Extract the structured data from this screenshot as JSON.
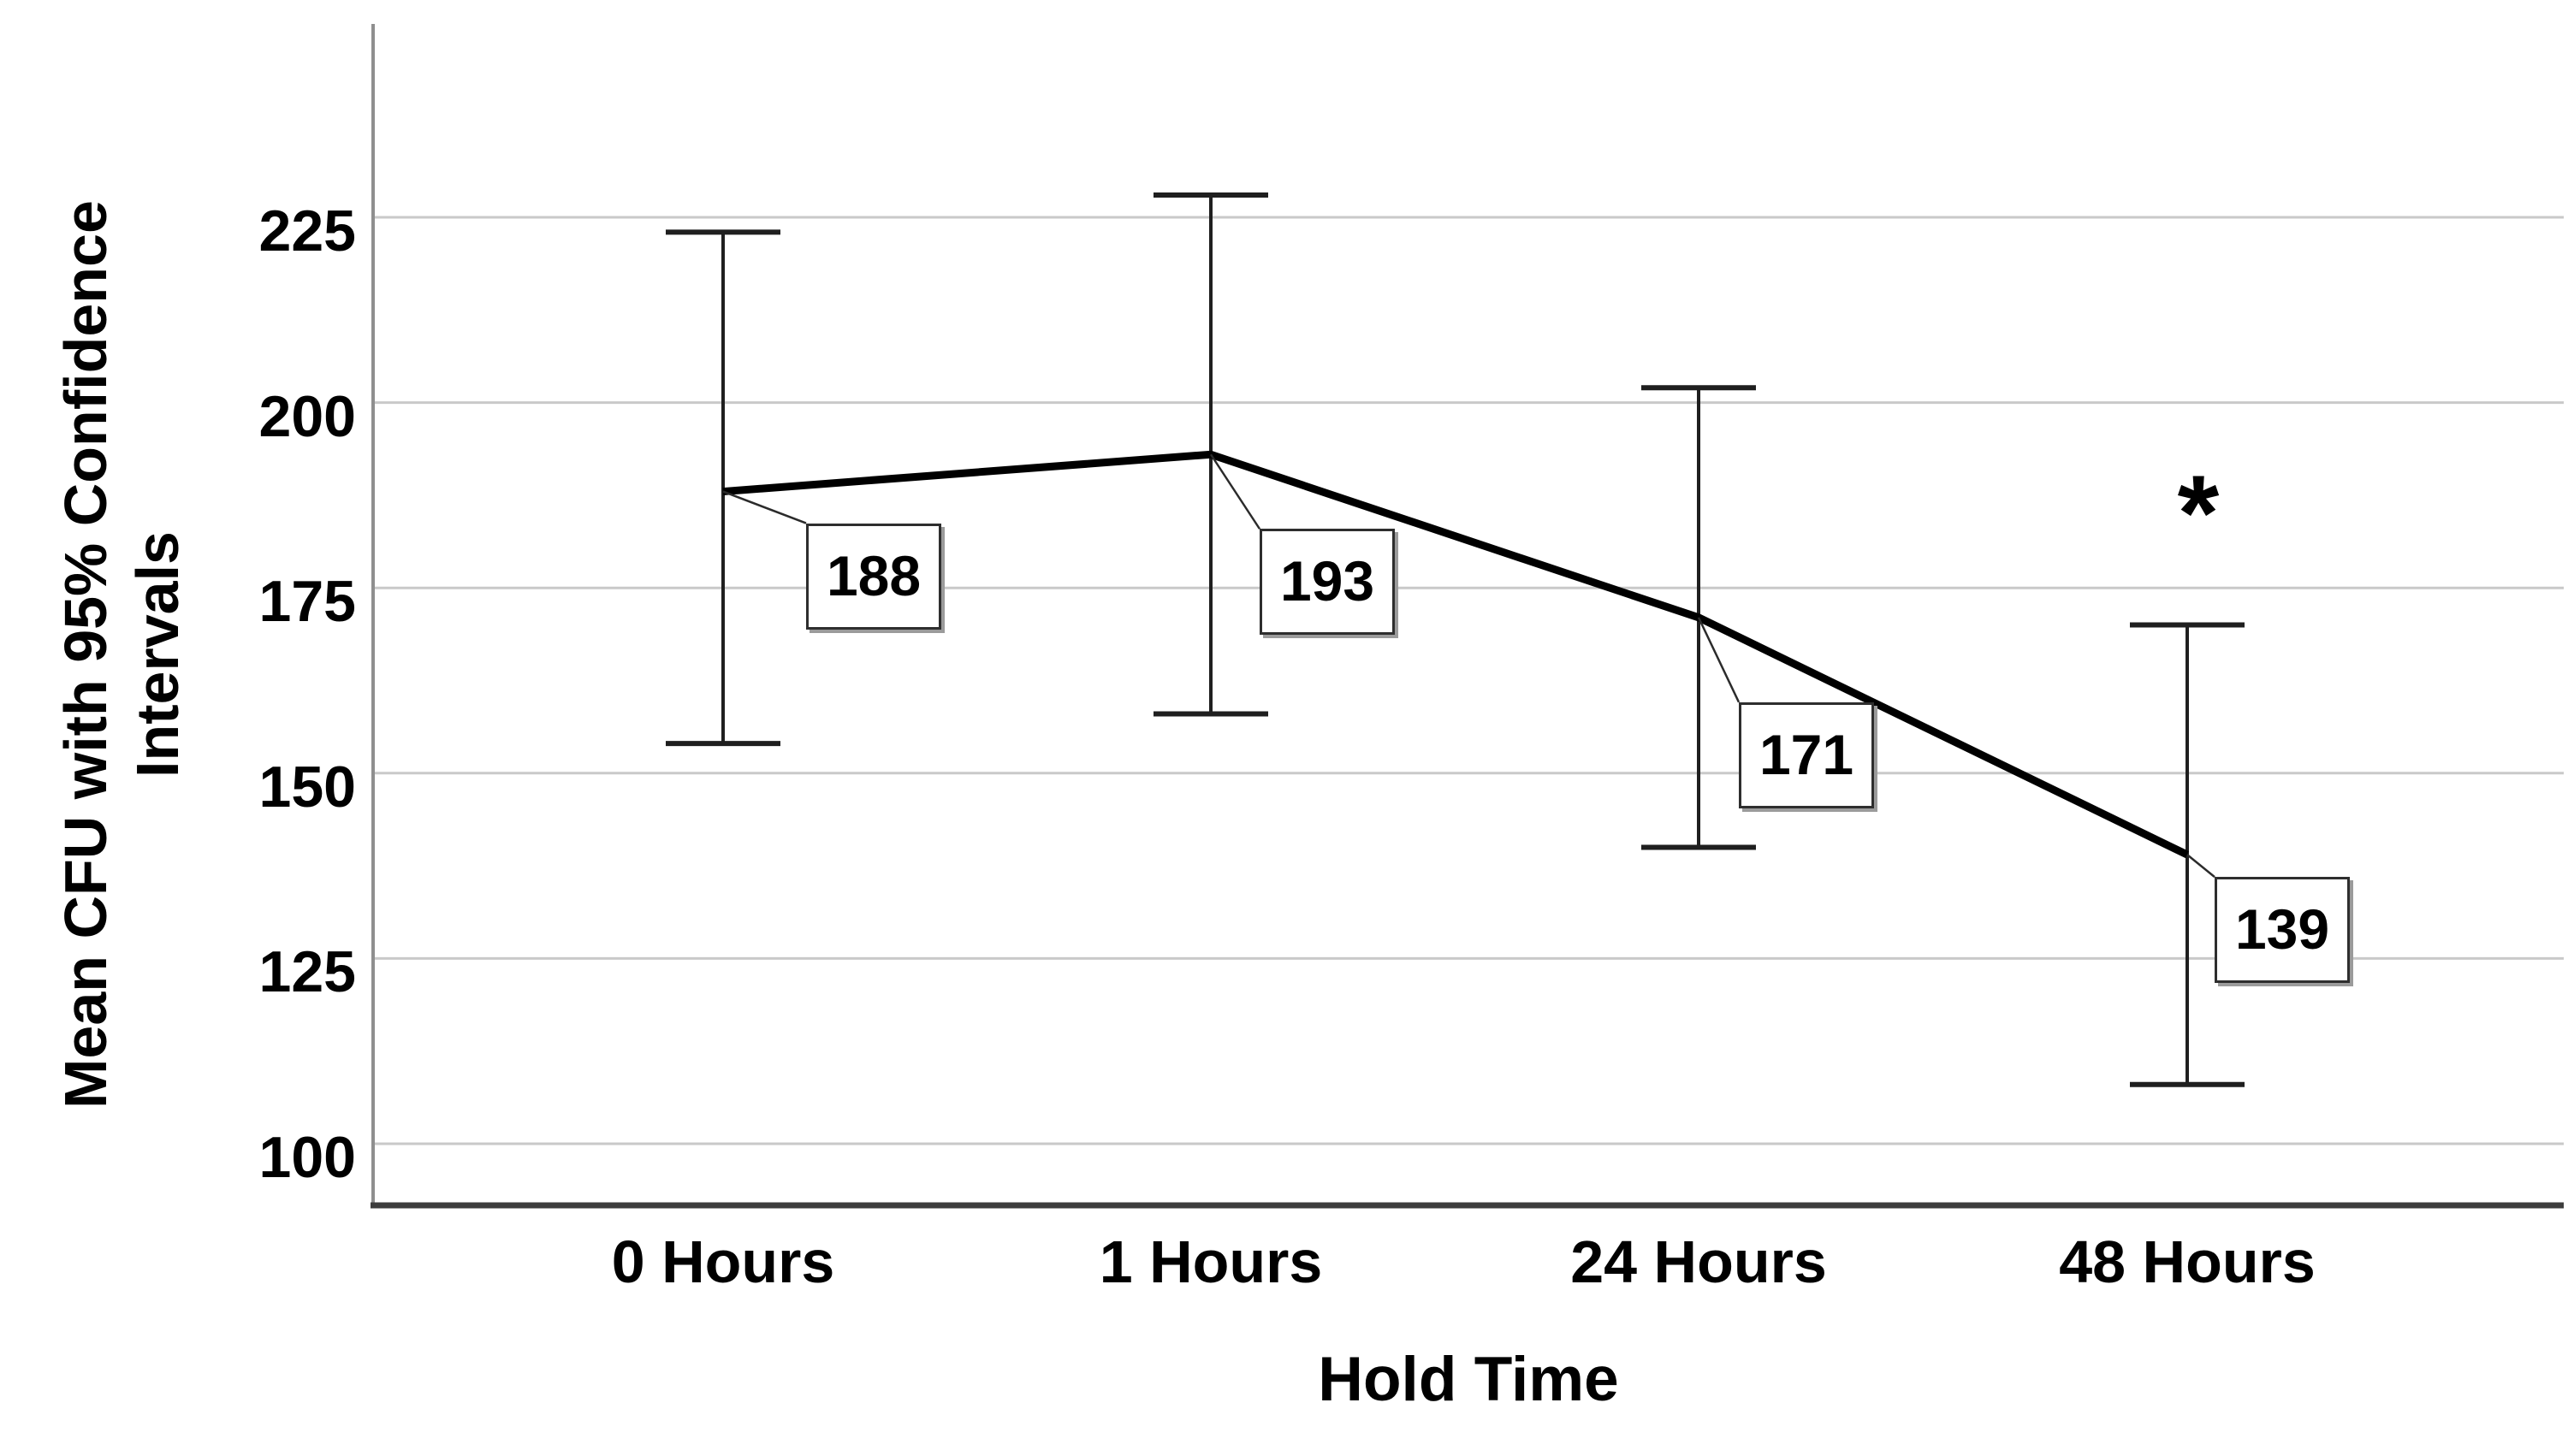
{
  "chart_data": {
    "type": "line",
    "title": "",
    "xlabel": "Hold Time",
    "ylabel": "Mean CFU with 95% Confidence Intervals",
    "ylabel_lines": [
      "Mean CFU with 95% Confidence",
      "Intervals"
    ],
    "categories": [
      "0 Hours",
      "1 Hours",
      "24 Hours",
      "48 Hours"
    ],
    "series": [
      {
        "name": "Mean CFU",
        "values": [
          188,
          193,
          171,
          139
        ],
        "ci_lower": [
          154,
          158,
          140,
          108
        ],
        "ci_upper": [
          223,
          228,
          202,
          170
        ]
      }
    ],
    "data_labels": [
      "188",
      "193",
      "171",
      "139"
    ],
    "yticks": [
      225,
      200,
      175,
      150,
      125,
      100
    ],
    "ylim": [
      92,
      251
    ],
    "grid": "horizontal-only",
    "legend": "none",
    "error_bars": "95% confidence interval caps",
    "annotations": [
      {
        "text": "*",
        "category": "48 Hours",
        "position": "above upper error bar"
      }
    ],
    "colors": {
      "line": "#000000",
      "error_bar": "#1f1f1f",
      "gridline": "#c9c9c9",
      "x_axis": "#3d3d3d",
      "y_axis": "#8f8f8f",
      "text": "#000000",
      "label_box_bg": "#ffffff",
      "label_box_border": "#2e2e2e"
    }
  }
}
